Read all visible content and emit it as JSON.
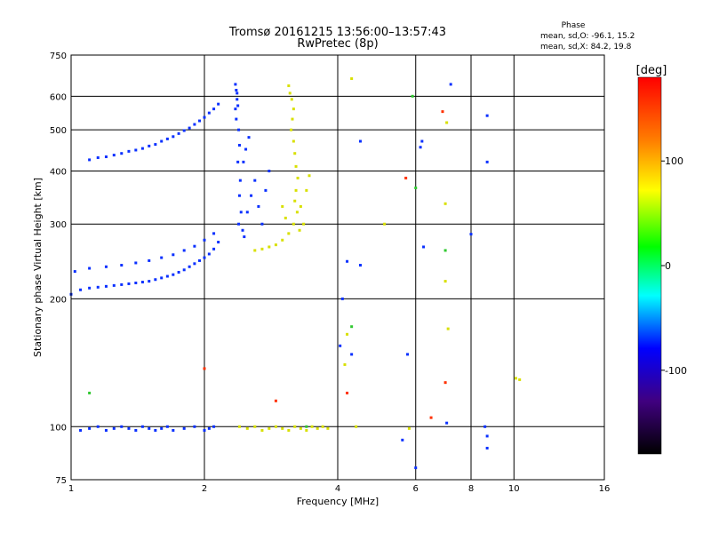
{
  "header": {
    "title_line1": "Tromsø 20161215 13:56:00–13:57:43",
    "title_line2": "RwPretec (8p)"
  },
  "phase_summary": {
    "title": "Phase",
    "line_o": "mean, sd,O: -96.1, 15.2",
    "line_x": "mean, sd,X:  84.2, 19.8"
  },
  "colorbar": {
    "label": "[deg]",
    "range": [
      -180,
      180
    ],
    "ticks": [
      100,
      0,
      -100
    ],
    "tick_labels": [
      "100",
      "0",
      "-100"
    ]
  },
  "chart_data": {
    "type": "scatter",
    "xlabel": "Frequency [MHz]",
    "ylabel": "Stationary phase Virtual Height [km]",
    "xscale": "log",
    "yscale": "log",
    "xlim": [
      1,
      16
    ],
    "ylim": [
      75,
      750
    ],
    "grid": true,
    "x_ticks": [
      1,
      2,
      4,
      6,
      8,
      10,
      16
    ],
    "x_tick_labels": [
      "1",
      "2",
      "4",
      "6",
      "8",
      "10",
      "16"
    ],
    "y_ticks": [
      75,
      100,
      200,
      300,
      400,
      500,
      600,
      750
    ],
    "y_tick_labels": [
      "75",
      "100",
      "200",
      "300",
      "400",
      "500",
      "600",
      "750"
    ],
    "series": [
      {
        "phase_deg": -100,
        "points": [
          [
            1.0,
            205
          ],
          [
            1.05,
            210
          ],
          [
            1.1,
            212
          ],
          [
            1.15,
            213
          ],
          [
            1.2,
            214
          ],
          [
            1.25,
            215
          ],
          [
            1.3,
            216
          ],
          [
            1.35,
            217
          ],
          [
            1.4,
            218
          ],
          [
            1.45,
            219
          ],
          [
            1.5,
            220
          ],
          [
            1.55,
            222
          ],
          [
            1.6,
            224
          ],
          [
            1.65,
            226
          ],
          [
            1.7,
            228
          ],
          [
            1.75,
            231
          ],
          [
            1.8,
            234
          ],
          [
            1.85,
            238
          ],
          [
            1.9,
            242
          ],
          [
            1.95,
            246
          ],
          [
            2.0,
            250
          ],
          [
            2.05,
            255
          ],
          [
            2.1,
            262
          ],
          [
            2.15,
            272
          ],
          [
            1.02,
            232
          ],
          [
            1.1,
            236
          ],
          [
            1.2,
            238
          ],
          [
            1.3,
            240
          ],
          [
            1.4,
            243
          ],
          [
            1.5,
            246
          ],
          [
            1.6,
            250
          ],
          [
            1.7,
            254
          ],
          [
            1.8,
            260
          ],
          [
            1.9,
            266
          ],
          [
            2.0,
            275
          ],
          [
            2.1,
            285
          ],
          [
            1.1,
            425
          ],
          [
            1.15,
            430
          ],
          [
            1.2,
            432
          ],
          [
            1.25,
            436
          ],
          [
            1.3,
            440
          ],
          [
            1.35,
            445
          ],
          [
            1.4,
            448
          ],
          [
            1.45,
            452
          ],
          [
            1.5,
            458
          ],
          [
            1.55,
            462
          ],
          [
            1.6,
            470
          ],
          [
            1.65,
            476
          ],
          [
            1.7,
            482
          ],
          [
            1.75,
            490
          ],
          [
            1.8,
            498
          ],
          [
            1.85,
            505
          ],
          [
            1.9,
            515
          ],
          [
            1.95,
            525
          ],
          [
            2.0,
            535
          ],
          [
            2.05,
            548
          ],
          [
            2.1,
            560
          ],
          [
            2.15,
            575
          ],
          [
            2.35,
            640
          ],
          [
            2.37,
            610
          ],
          [
            2.38,
            570
          ],
          [
            2.36,
            530
          ],
          [
            2.39,
            500
          ],
          [
            2.4,
            460
          ],
          [
            2.38,
            420
          ],
          [
            2.41,
            380
          ],
          [
            2.4,
            350
          ],
          [
            2.42,
            320
          ],
          [
            2.39,
            300
          ],
          [
            2.44,
            290
          ],
          [
            2.46,
            280
          ],
          [
            2.5,
            320
          ],
          [
            2.55,
            350
          ],
          [
            2.6,
            380
          ],
          [
            2.65,
            330
          ],
          [
            2.7,
            300
          ],
          [
            2.75,
            360
          ],
          [
            2.8,
            400
          ],
          [
            2.45,
            420
          ],
          [
            2.48,
            450
          ],
          [
            2.52,
            480
          ],
          [
            2.35,
            560
          ],
          [
            2.37,
            590
          ],
          [
            2.36,
            620
          ],
          [
            1.05,
            98
          ],
          [
            1.1,
            99
          ],
          [
            1.15,
            100
          ],
          [
            1.2,
            98
          ],
          [
            1.25,
            99
          ],
          [
            1.3,
            100
          ],
          [
            1.35,
            99
          ],
          [
            1.4,
            98
          ],
          [
            1.45,
            100
          ],
          [
            1.5,
            99
          ],
          [
            1.55,
            98
          ],
          [
            1.6,
            99
          ],
          [
            1.65,
            100
          ],
          [
            1.7,
            98
          ],
          [
            1.8,
            99
          ],
          [
            1.9,
            100
          ],
          [
            2.0,
            98
          ],
          [
            2.05,
            99
          ],
          [
            2.1,
            100
          ],
          [
            4.5,
            470
          ],
          [
            6.2,
            470
          ],
          [
            6.15,
            455
          ],
          [
            6.25,
            265
          ],
          [
            4.2,
            245
          ],
          [
            4.5,
            240
          ],
          [
            4.1,
            200
          ],
          [
            7.2,
            640
          ],
          [
            8.7,
            540
          ],
          [
            8.7,
            420
          ],
          [
            8.6,
            100
          ],
          [
            8.7,
            95
          ],
          [
            8.7,
            89
          ],
          [
            6.0,
            80
          ],
          [
            5.6,
            93
          ],
          [
            4.3,
            148
          ],
          [
            5.75,
            148
          ],
          [
            8.0,
            284
          ],
          [
            4.05,
            155
          ],
          [
            7.05,
            102
          ]
        ]
      },
      {
        "phase_deg": 100,
        "points": [
          [
            3.1,
            635
          ],
          [
            3.12,
            610
          ],
          [
            3.15,
            590
          ],
          [
            3.18,
            560
          ],
          [
            3.16,
            530
          ],
          [
            3.14,
            500
          ],
          [
            3.18,
            470
          ],
          [
            3.2,
            440
          ],
          [
            3.22,
            410
          ],
          [
            3.25,
            385
          ],
          [
            3.22,
            360
          ],
          [
            3.2,
            340
          ],
          [
            3.24,
            320
          ],
          [
            3.18,
            300
          ],
          [
            3.1,
            285
          ],
          [
            3.0,
            275
          ],
          [
            2.9,
            268
          ],
          [
            2.8,
            265
          ],
          [
            2.7,
            262
          ],
          [
            2.6,
            260
          ],
          [
            3.3,
            330
          ],
          [
            3.4,
            360
          ],
          [
            3.45,
            390
          ],
          [
            3.35,
            300
          ],
          [
            3.28,
            290
          ],
          [
            3.05,
            310
          ],
          [
            3.0,
            330
          ],
          [
            2.4,
            100
          ],
          [
            2.5,
            99
          ],
          [
            2.6,
            100
          ],
          [
            2.7,
            98
          ],
          [
            2.8,
            99
          ],
          [
            2.9,
            100
          ],
          [
            3.0,
            99
          ],
          [
            3.1,
            98
          ],
          [
            3.2,
            100
          ],
          [
            3.3,
            99
          ],
          [
            3.4,
            98
          ],
          [
            3.5,
            100
          ],
          [
            3.6,
            99
          ],
          [
            3.7,
            100
          ],
          [
            3.8,
            99
          ],
          [
            4.3,
            660
          ],
          [
            4.4,
            100
          ],
          [
            4.2,
            165
          ],
          [
            4.15,
            140
          ],
          [
            7.0,
            335
          ],
          [
            7.1,
            170
          ],
          [
            7.0,
            220
          ],
          [
            5.1,
            300
          ],
          [
            10.1,
            130
          ],
          [
            10.3,
            129
          ],
          [
            7.05,
            520
          ],
          [
            5.8,
            99
          ]
        ]
      },
      {
        "phase_deg": 150,
        "points": [
          [
            2.0,
            137
          ],
          [
            2.9,
            115
          ],
          [
            4.2,
            120
          ],
          [
            6.9,
            552
          ],
          [
            5.7,
            385
          ],
          [
            7.0,
            127
          ],
          [
            6.5,
            105
          ]
        ]
      },
      {
        "phase_deg": 20,
        "points": [
          [
            1.1,
            120
          ],
          [
            3.4,
            100
          ],
          [
            5.9,
            600
          ],
          [
            6.0,
            365
          ],
          [
            4.3,
            172
          ],
          [
            7.0,
            260
          ]
        ]
      }
    ]
  }
}
